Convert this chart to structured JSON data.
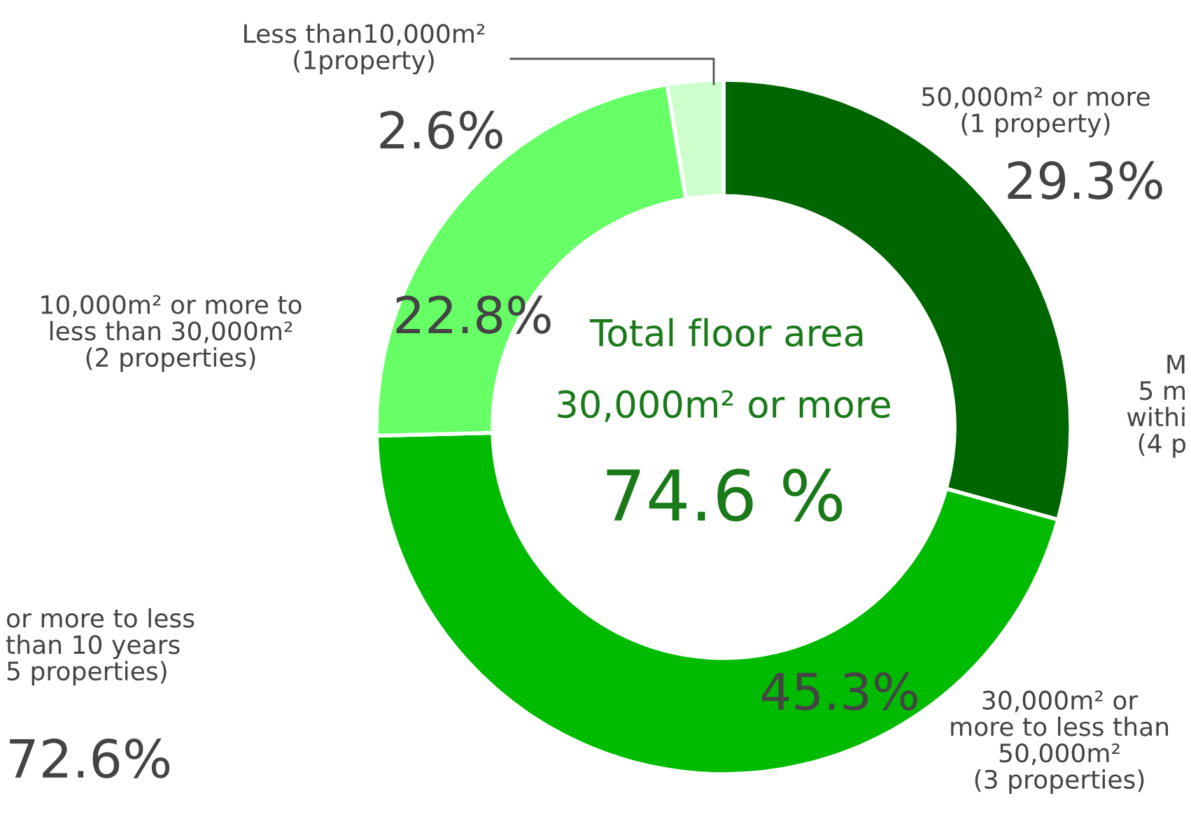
{
  "chart_data": {
    "type": "donut",
    "title": "Total floor area",
    "subtitle": "30,000m² or more",
    "categories": [
      "50,000m² or more\n(1 property)",
      "30,000m² or\nmore to less than\n50,000m²\n(3 properties)",
      "10,000m² or more to\nless than 30,000m²\n(2 properties)",
      "Less than10,000m²\n(1property)"
    ],
    "values": [
      29.3,
      45.3,
      22.8,
      2.6
    ],
    "colors": [
      "#006600",
      "#00bb00",
      "#66ff66",
      "#ccffcc"
    ],
    "value_labels": [
      "29.3%",
      "45.3%",
      "22.8%",
      "2.6%"
    ],
    "annotations": [
      "74.6 %",
      "M\n5 m\nwithi\n(4 p",
      "or more to less\nthan 10 years\n5 properties)",
      "72.6%"
    ]
  }
}
